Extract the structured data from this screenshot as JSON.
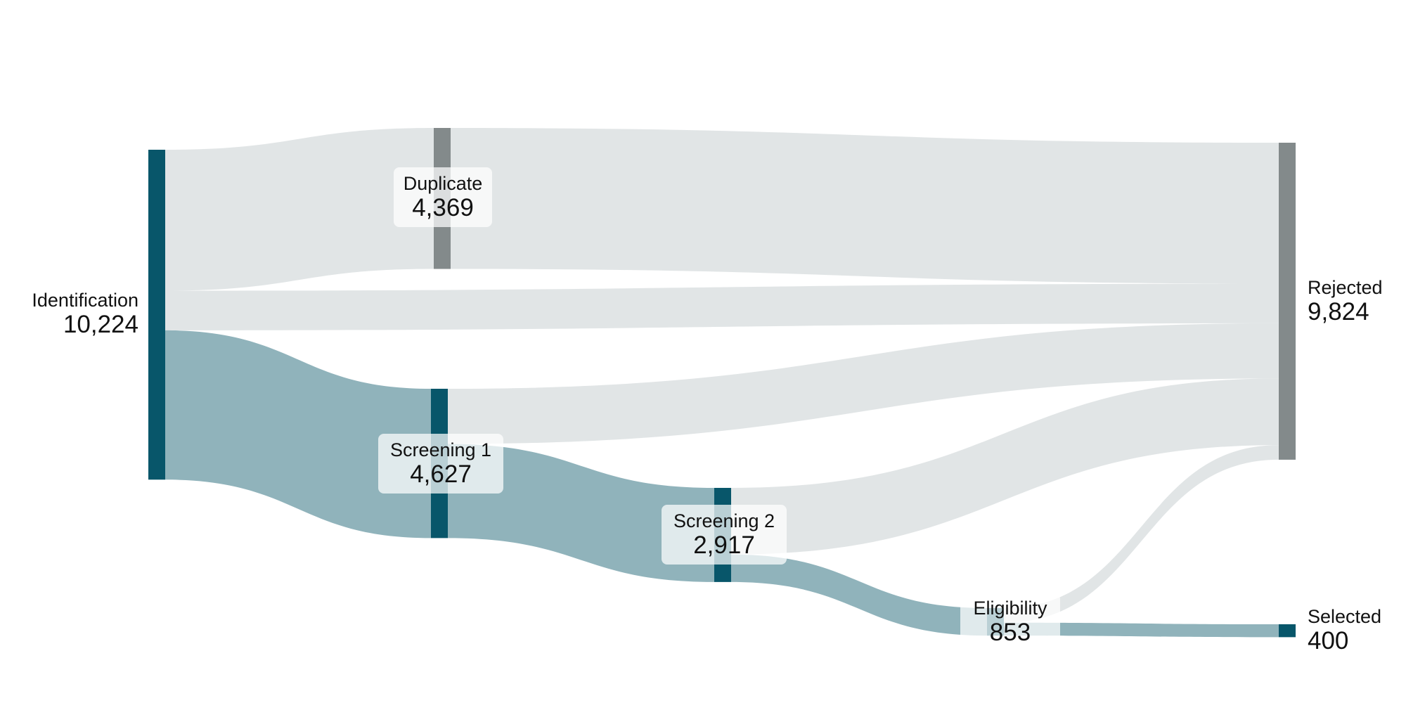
{
  "colors": {
    "primary": "#08566a",
    "neutral": "#838a8b",
    "primary_link": "#90b3bb",
    "neutral_link": "#e1e5e6"
  },
  "chart_data": {
    "type": "sankey",
    "nodes": [
      {
        "id": "identification",
        "name": "Identification",
        "value": 10224,
        "value_text": "10,224",
        "stage": 0,
        "color": "primary"
      },
      {
        "id": "duplicate",
        "name": "Duplicate",
        "value": 4369,
        "value_text": "4,369",
        "stage": 1,
        "color": "neutral"
      },
      {
        "id": "screening1",
        "name": "Screening 1",
        "value": 4627,
        "value_text": "4,627",
        "stage": 1,
        "color": "primary"
      },
      {
        "id": "screening2",
        "name": "Screening 2",
        "value": 2917,
        "value_text": "2,917",
        "stage": 2,
        "color": "primary"
      },
      {
        "id": "eligibility",
        "name": "Eligibility",
        "value": 853,
        "value_text": "853",
        "stage": 3,
        "color": "primary"
      },
      {
        "id": "rejected",
        "name": "Rejected",
        "value": 9824,
        "value_text": "9,824",
        "stage": 4,
        "color": "neutral"
      },
      {
        "id": "selected",
        "name": "Selected",
        "value": 400,
        "value_text": "400",
        "stage": 4,
        "color": "primary"
      }
    ],
    "links": [
      {
        "source": "identification",
        "target": "duplicate",
        "value": 4369
      },
      {
        "source": "identification",
        "target": "rejected",
        "value": 1228
      },
      {
        "source": "identification",
        "target": "screening1",
        "value": 4627
      },
      {
        "source": "duplicate",
        "target": "rejected",
        "value": 4369
      },
      {
        "source": "screening1",
        "target": "rejected",
        "value": 1710
      },
      {
        "source": "screening1",
        "target": "screening2",
        "value": 2917
      },
      {
        "source": "screening2",
        "target": "rejected",
        "value": 2064
      },
      {
        "source": "screening2",
        "target": "eligibility",
        "value": 853
      },
      {
        "source": "eligibility",
        "target": "rejected",
        "value": 453
      },
      {
        "source": "eligibility",
        "target": "selected",
        "value": 400
      }
    ]
  }
}
